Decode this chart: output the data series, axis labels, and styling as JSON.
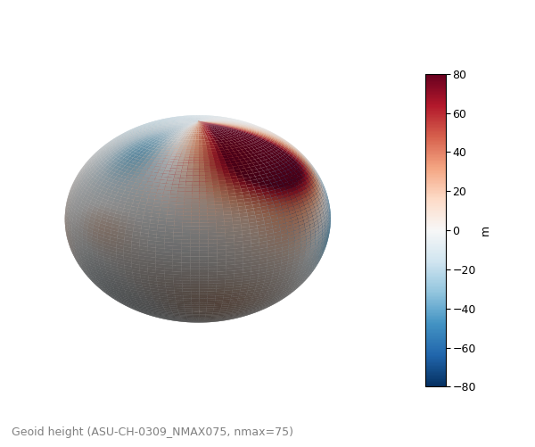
{
  "colorbar_label": "m",
  "colorbar_ticks": [
    80,
    60,
    40,
    20,
    0,
    -20,
    -40,
    -60,
    -80
  ],
  "vmin": -80,
  "vmax": 80,
  "caption": "Geoid height (ASU-CH-0309_NMAX075, nmax=75)",
  "caption_fontsize": 9,
  "caption_color": "#808080",
  "background_color": "#ffffff",
  "colormap": "RdBu_r",
  "colorbar_fontsize": 9,
  "figure_width": 6.0,
  "figure_height": 5.01,
  "dpi": 100
}
